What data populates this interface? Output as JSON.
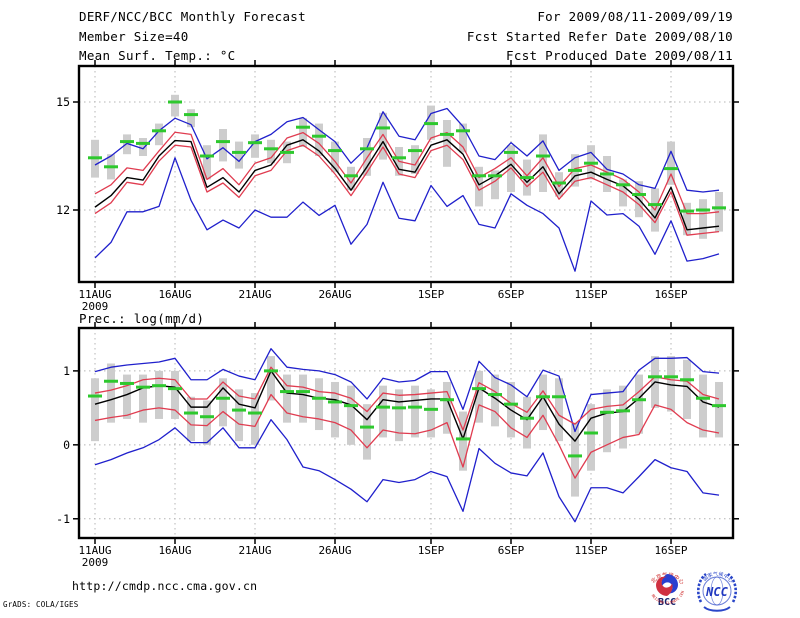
{
  "header": {
    "title": "DERF/NCC/BCC Monthly Forecast",
    "member_size": "Member Size=40",
    "temp_label": "Mean Surf. Temp.: °C",
    "for_range": "For 2009/08/11-2009/09/19",
    "refer_date": "Fcst Started Refer Date 2009/08/10",
    "produced_date": "Fcst Produced Date 2009/08/11"
  },
  "precip_title": "Prec.: log(mm/d)",
  "footer": {
    "url": "http://cmdp.ncc.cma.gov.cn",
    "credit": "GrADS: COLA/IGES"
  },
  "logos": {
    "bcc_label": "BCC",
    "bcc_top_arc": "北京气候中心",
    "bcc_bottom_arc": "BEIJING CLIMATE CENTER",
    "ncc_label": "NCC",
    "ncc_top_arc": "国家气候中心"
  },
  "colors": {
    "max_min_line": "#2020cc",
    "quartile_line": "#e03c50",
    "mean_line": "#000000",
    "obs_dash": "#2ec82e",
    "range_bar": "#cdcdcd",
    "gridline": "#b4b4b4",
    "frame": "#000000"
  },
  "chart_data": [
    {
      "type": "line",
      "id": "temp",
      "title": "Mean Surf. Temp.: °C",
      "ylabel": "Mean Surf. Temp. (°C)",
      "xlabel": "date",
      "ylim": [
        10,
        16
      ],
      "grid": true,
      "yticks": [
        {
          "v": 15,
          "label": "15"
        },
        {
          "v": 12,
          "label": "12"
        }
      ],
      "xticks": [
        {
          "day": 0,
          "label": "11AUG",
          "sublabel": "2009"
        },
        {
          "day": 5,
          "label": "16AUG"
        },
        {
          "day": 10,
          "label": "21AUG"
        },
        {
          "day": 15,
          "label": "26AUG"
        },
        {
          "day": 21,
          "label": "1SEP"
        },
        {
          "day": 26,
          "label": "6SEP"
        },
        {
          "day": 31,
          "label": "11SEP"
        },
        {
          "day": 36,
          "label": "16SEP"
        }
      ],
      "series": [
        {
          "name": "climatology-range-bar",
          "style": "bar",
          "colorKey": "range_bar",
          "lo": [
            12.9,
            12.85,
            13.55,
            13.5,
            13.8,
            14.6,
            14.3,
            12.85,
            13.35,
            13.15,
            13.45,
            13.3,
            13.3,
            13.75,
            13.5,
            13.05,
            12.55,
            12.95,
            13.4,
            12.95,
            13.0,
            13.95,
            13.2,
            13.6,
            12.1,
            12.3,
            12.5,
            12.4,
            12.5,
            12.37,
            12.65,
            12.85,
            12.5,
            12.1,
            11.8,
            11.4,
            12.7,
            11.3,
            11.2,
            11.4
          ],
          "hi": [
            13.95,
            13.55,
            14.1,
            14.0,
            14.4,
            15.2,
            14.8,
            13.8,
            14.25,
            13.9,
            14.1,
            13.95,
            13.9,
            14.55,
            14.4,
            13.9,
            13.2,
            14.0,
            14.7,
            13.75,
            13.8,
            14.9,
            14.5,
            14.4,
            13.2,
            13.1,
            13.8,
            13.4,
            14.1,
            13.05,
            13.55,
            13.8,
            13.5,
            12.85,
            12.8,
            12.6,
            13.9,
            12.2,
            12.3,
            12.5
          ]
        },
        {
          "name": "ensemble-max",
          "style": "line",
          "colorKey": "max_min_line",
          "values": [
            13.25,
            13.5,
            13.85,
            13.7,
            14.2,
            14.55,
            14.37,
            13.42,
            13.73,
            13.35,
            13.9,
            14.1,
            14.45,
            14.57,
            14.23,
            13.9,
            13.3,
            13.73,
            14.73,
            14.05,
            13.95,
            14.68,
            14.82,
            14.32,
            13.5,
            13.4,
            13.87,
            13.5,
            13.92,
            13.1,
            13.45,
            13.6,
            13.13,
            13.0,
            12.7,
            12.6,
            13.63,
            12.55,
            12.5,
            12.55
          ]
        },
        {
          "name": "ensemble-min",
          "style": "line",
          "colorKey": "max_min_line",
          "values": [
            10.67,
            11.1,
            11.95,
            11.95,
            12.1,
            13.45,
            12.27,
            11.45,
            11.72,
            11.5,
            12.0,
            11.8,
            11.8,
            12.22,
            11.85,
            12.13,
            11.05,
            11.6,
            12.77,
            11.77,
            11.7,
            12.68,
            12.1,
            12.4,
            11.6,
            11.5,
            12.45,
            12.13,
            11.9,
            11.5,
            10.3,
            12.25,
            11.86,
            11.9,
            11.55,
            10.77,
            11.7,
            10.58,
            10.65,
            10.78
          ]
        },
        {
          "name": "upper-quartile",
          "style": "line",
          "colorKey": "quartile_line",
          "values": [
            12.45,
            12.7,
            13.17,
            13.1,
            13.64,
            14.16,
            14.1,
            12.85,
            13.15,
            12.7,
            13.3,
            13.45,
            14.0,
            14.15,
            13.85,
            13.35,
            12.75,
            13.45,
            14.1,
            13.35,
            13.25,
            14.0,
            14.15,
            13.75,
            12.9,
            13.15,
            13.45,
            12.95,
            13.45,
            12.65,
            13.15,
            13.25,
            13.05,
            12.85,
            12.5,
            12.0,
            13.0,
            11.9,
            11.9,
            11.95
          ]
        },
        {
          "name": "lower-quartile",
          "style": "line",
          "colorKey": "quartile_line",
          "values": [
            11.9,
            12.2,
            12.77,
            12.7,
            13.36,
            13.8,
            13.75,
            12.5,
            12.75,
            12.35,
            12.95,
            13.1,
            13.65,
            13.8,
            13.5,
            13.0,
            12.4,
            13.05,
            13.75,
            13.0,
            12.9,
            13.65,
            13.8,
            13.4,
            12.55,
            12.8,
            13.17,
            12.65,
            13.05,
            12.3,
            12.8,
            12.9,
            12.7,
            12.5,
            12.15,
            11.65,
            12.5,
            11.3,
            11.35,
            11.4
          ]
        },
        {
          "name": "ensemble-mean",
          "style": "line",
          "colorKey": "mean_line",
          "values": [
            12.08,
            12.4,
            12.9,
            12.83,
            13.5,
            13.93,
            13.9,
            12.63,
            12.9,
            12.5,
            13.1,
            13.25,
            13.8,
            13.95,
            13.64,
            13.15,
            12.55,
            13.2,
            13.9,
            13.13,
            13.05,
            13.8,
            13.95,
            13.55,
            12.7,
            12.95,
            13.27,
            12.77,
            13.2,
            12.45,
            12.95,
            13.05,
            12.85,
            12.67,
            12.3,
            11.78,
            12.63,
            11.45,
            11.5,
            11.55
          ]
        },
        {
          "name": "climatology-median-dash",
          "style": "dash",
          "colorKey": "obs_dash",
          "values": [
            13.45,
            13.2,
            13.9,
            13.85,
            14.2,
            15.0,
            14.65,
            13.5,
            13.9,
            13.6,
            13.87,
            13.7,
            13.6,
            14.3,
            14.05,
            13.65,
            12.95,
            13.7,
            14.28,
            13.45,
            13.65,
            14.4,
            14.1,
            14.2,
            12.95,
            12.95,
            13.6,
            12.9,
            13.5,
            12.75,
            13.1,
            13.3,
            13.0,
            12.7,
            12.43,
            12.15,
            13.15,
            11.97,
            12.0,
            12.06
          ]
        }
      ]
    },
    {
      "type": "line",
      "id": "prec",
      "title": "Prec.: log(mm/d)",
      "ylabel": "Prec. log(mm/d)",
      "xlabel": "date",
      "ylim": [
        -1.26,
        1.58
      ],
      "grid": true,
      "yticks": [
        {
          "v": 1,
          "label": "1"
        },
        {
          "v": 0,
          "label": "0"
        },
        {
          "v": -1,
          "label": "-1"
        }
      ],
      "xticks": [
        {
          "day": 0,
          "label": "11AUG",
          "sublabel": "2009"
        },
        {
          "day": 5,
          "label": "16AUG"
        },
        {
          "day": 10,
          "label": "21AUG"
        },
        {
          "day": 15,
          "label": "26AUG"
        },
        {
          "day": 21,
          "label": "1SEP"
        },
        {
          "day": 26,
          "label": "6SEP"
        },
        {
          "day": 31,
          "label": "11SEP"
        },
        {
          "day": 36,
          "label": "16SEP"
        }
      ],
      "series": [
        {
          "name": "climatology-range-bar",
          "style": "bar",
          "colorKey": "range_bar",
          "lo": [
            0.05,
            0.3,
            0.35,
            0.3,
            0.35,
            0.35,
            0.05,
            0.0,
            0.25,
            0.05,
            0.0,
            0.6,
            0.3,
            0.3,
            0.2,
            0.1,
            0.0,
            -0.2,
            0.1,
            0.05,
            0.1,
            0.1,
            0.15,
            -0.35,
            0.3,
            0.25,
            0.1,
            -0.05,
            0.2,
            0.05,
            -0.7,
            -0.35,
            -0.1,
            -0.05,
            0.15,
            0.5,
            0.45,
            0.35,
            0.1,
            0.1
          ],
          "hi": [
            0.9,
            1.1,
            0.95,
            0.95,
            1.0,
            1.0,
            0.65,
            0.6,
            0.9,
            0.75,
            0.7,
            1.2,
            0.95,
            0.95,
            0.9,
            0.85,
            0.8,
            0.55,
            0.8,
            0.75,
            0.8,
            0.75,
            0.85,
            0.45,
            1.0,
            0.95,
            0.85,
            0.65,
            0.95,
            0.9,
            0.3,
            0.55,
            0.75,
            0.8,
            0.95,
            1.2,
            1.2,
            1.15,
            0.95,
            0.85
          ]
        },
        {
          "name": "ensemble-max",
          "style": "line",
          "colorKey": "max_min_line",
          "values": [
            0.99,
            1.05,
            1.08,
            1.1,
            1.12,
            1.17,
            0.88,
            0.88,
            1.02,
            0.93,
            0.88,
            1.3,
            1.05,
            1.02,
            1.0,
            0.95,
            0.85,
            0.62,
            0.9,
            0.85,
            0.87,
            0.99,
            0.99,
            0.48,
            1.13,
            0.91,
            0.81,
            0.65,
            1.01,
            0.93,
            0.18,
            0.68,
            0.7,
            0.72,
            1.01,
            1.17,
            1.17,
            1.18,
            0.99,
            0.97
          ]
        },
        {
          "name": "ensemble-min",
          "style": "line",
          "colorKey": "max_min_line",
          "values": [
            -0.27,
            -0.2,
            -0.11,
            -0.04,
            0.07,
            0.23,
            0.03,
            0.03,
            0.23,
            -0.04,
            -0.04,
            0.34,
            0.07,
            -0.3,
            -0.35,
            -0.47,
            -0.6,
            -0.77,
            -0.47,
            -0.51,
            -0.47,
            -0.36,
            -0.43,
            -0.9,
            -0.05,
            -0.25,
            -0.38,
            -0.42,
            -0.11,
            -0.7,
            -1.04,
            -0.58,
            -0.58,
            -0.65,
            -0.43,
            -0.2,
            -0.31,
            -0.36,
            -0.65,
            -0.68
          ]
        },
        {
          "name": "upper-quartile",
          "style": "line",
          "colorKey": "quartile_line",
          "values": [
            0.7,
            0.74,
            0.8,
            0.88,
            0.9,
            0.88,
            0.62,
            0.62,
            0.85,
            0.66,
            0.62,
            1.05,
            0.8,
            0.78,
            0.72,
            0.7,
            0.63,
            0.45,
            0.7,
            0.67,
            0.68,
            0.7,
            0.72,
            0.2,
            0.84,
            0.72,
            0.56,
            0.44,
            0.73,
            0.4,
            0.28,
            0.48,
            0.52,
            0.54,
            0.72,
            0.92,
            0.88,
            0.86,
            0.68,
            0.62
          ]
        },
        {
          "name": "lower-quartile",
          "style": "line",
          "colorKey": "quartile_line",
          "values": [
            0.33,
            0.37,
            0.4,
            0.47,
            0.5,
            0.47,
            0.27,
            0.26,
            0.45,
            0.28,
            0.25,
            0.68,
            0.43,
            0.38,
            0.35,
            0.3,
            0.2,
            -0.04,
            0.2,
            0.16,
            0.15,
            0.2,
            0.3,
            -0.3,
            0.54,
            0.45,
            0.23,
            0.1,
            0.4,
            0.0,
            -0.45,
            -0.1,
            0.0,
            0.1,
            0.14,
            0.54,
            0.48,
            0.3,
            0.2,
            0.16
          ]
        },
        {
          "name": "ensemble-mean",
          "style": "line",
          "colorKey": "mean_line",
          "values": [
            0.55,
            0.61,
            0.68,
            0.77,
            0.8,
            0.78,
            0.51,
            0.51,
            0.77,
            0.55,
            0.5,
            1.0,
            0.7,
            0.68,
            0.63,
            0.61,
            0.54,
            0.34,
            0.61,
            0.58,
            0.6,
            0.62,
            0.62,
            0.08,
            0.77,
            0.63,
            0.47,
            0.34,
            0.65,
            0.28,
            0.05,
            0.36,
            0.43,
            0.45,
            0.63,
            0.85,
            0.81,
            0.79,
            0.58,
            0.51
          ]
        },
        {
          "name": "climatology-median-dash",
          "style": "dash",
          "colorKey": "obs_dash",
          "values": [
            0.66,
            0.86,
            0.83,
            0.78,
            0.8,
            0.76,
            0.43,
            0.38,
            0.63,
            0.47,
            0.43,
            1.0,
            0.72,
            0.72,
            0.63,
            0.58,
            0.53,
            0.24,
            0.51,
            0.5,
            0.51,
            0.48,
            0.61,
            0.08,
            0.76,
            0.68,
            0.55,
            0.36,
            0.65,
            0.65,
            -0.15,
            0.16,
            0.44,
            0.46,
            0.61,
            0.92,
            0.92,
            0.88,
            0.63,
            0.53
          ]
        }
      ]
    }
  ]
}
